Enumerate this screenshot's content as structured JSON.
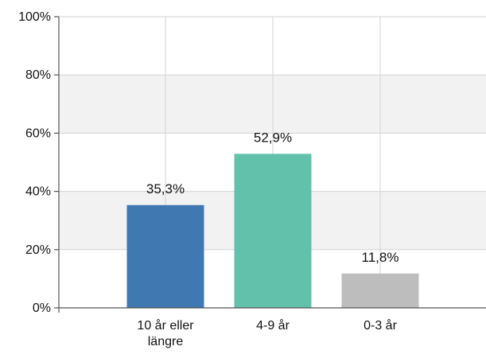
{
  "chart_data": {
    "type": "bar",
    "categories": [
      [
        "10 år eller",
        "längre"
      ],
      [
        "4-9 år"
      ],
      [
        "0-3 år"
      ]
    ],
    "values": [
      35.3,
      52.9,
      11.8
    ],
    "data_labels": [
      "35,3%",
      "52,9%",
      "11,8%"
    ],
    "bar_colors": [
      "#4078b2",
      "#62c1ab",
      "#bdbdbd"
    ],
    "ylim": [
      0,
      100
    ],
    "yticks": [
      0,
      20,
      40,
      60,
      80,
      100
    ],
    "ytick_labels": [
      "0%",
      "20%",
      "40%",
      "60%",
      "80%",
      "100%"
    ],
    "grid": true,
    "band_color": "#f2f2f2",
    "gridline_color": "#d3d3d3",
    "axis_color": "#555555",
    "title": "",
    "xlabel": "",
    "ylabel": ""
  }
}
